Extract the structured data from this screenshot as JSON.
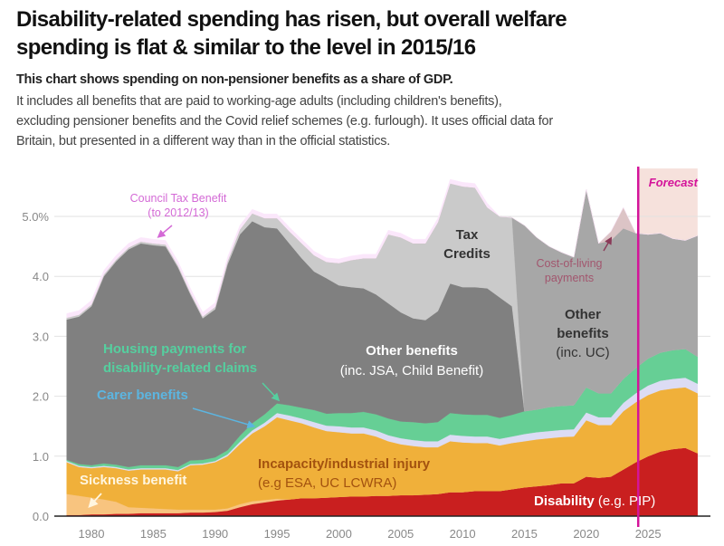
{
  "header": {
    "title_line1": "Disability-related spending has risen, but overall welfare",
    "title_line2": "spending is flat & similar to the level in 2015/16",
    "subtitle": "This chart shows spending on non-pensioner benefits as a share of GDP.",
    "description_line1": "It includes all benefits that are paid to working-age adults (including children's benefits),",
    "description_line2": "excluding pensioner benefits and the Covid relief schemes (e.g. furlough). It uses official data for",
    "description_line3": "Britain, but presented in a different way than in the official statistics."
  },
  "chart_data": {
    "type": "area",
    "stacked": true,
    "ylim": [
      0,
      5.8
    ],
    "yticks": [
      "0.0",
      "1.0",
      "2.0",
      "3.0",
      "4.0",
      "5.0%"
    ],
    "ytick_values": [
      0,
      1,
      2,
      3,
      4,
      5
    ],
    "xticks": [
      "1980",
      "1985",
      "1990",
      "1995",
      "2000",
      "2005",
      "2010",
      "2015",
      "2020",
      "2025"
    ],
    "xtick_values": [
      1980,
      1985,
      1990,
      1995,
      2000,
      2005,
      2010,
      2015,
      2020,
      2025
    ],
    "grid": true,
    "forecast_start": 2024.2,
    "forecast_label": "Forecast",
    "forecast_color": "#d4149a",
    "forecast_shade": "#f6e1dc",
    "x": [
      1978,
      1979,
      1980,
      1981,
      1982,
      1983,
      1984,
      1985,
      1986,
      1987,
      1988,
      1989,
      1990,
      1991,
      1992,
      1993,
      1994,
      1995,
      1996,
      1997,
      1998,
      1999,
      2000,
      2001,
      2002,
      2003,
      2004,
      2005,
      2006,
      2007,
      2008,
      2009,
      2010,
      2011,
      2012,
      2013,
      2014,
      2015,
      2016,
      2017,
      2018,
      2019,
      2020,
      2021,
      2022,
      2023,
      2024,
      2025,
      2026,
      2027,
      2028,
      2029
    ],
    "series": [
      {
        "key": "disability",
        "color": "#c91f1f",
        "values": [
          0.02,
          0.02,
          0.03,
          0.03,
          0.04,
          0.04,
          0.05,
          0.05,
          0.05,
          0.05,
          0.06,
          0.06,
          0.07,
          0.09,
          0.15,
          0.2,
          0.23,
          0.26,
          0.28,
          0.3,
          0.3,
          0.31,
          0.32,
          0.33,
          0.33,
          0.34,
          0.34,
          0.35,
          0.35,
          0.36,
          0.37,
          0.4,
          0.4,
          0.42,
          0.42,
          0.42,
          0.45,
          0.48,
          0.5,
          0.52,
          0.55,
          0.55,
          0.66,
          0.64,
          0.66,
          0.78,
          0.9,
          1.0,
          1.08,
          1.12,
          1.14,
          1.05
        ]
      },
      {
        "key": "sickness",
        "color": "#f8c47f",
        "values": [
          0.35,
          0.32,
          0.28,
          0.25,
          0.2,
          0.11,
          0.09,
          0.08,
          0.07,
          0.06,
          0.05,
          0.05,
          0.04,
          0.04,
          0.05,
          0.05,
          0.04,
          0.03,
          0,
          0,
          0,
          0,
          0,
          0,
          0,
          0,
          0,
          0,
          0,
          0,
          0,
          0,
          0,
          0,
          0,
          0,
          0,
          0,
          0,
          0,
          0,
          0,
          0,
          0,
          0,
          0,
          0,
          0,
          0,
          0,
          0,
          0
        ]
      },
      {
        "key": "incapacity",
        "color": "#f0b03a",
        "values": [
          0.53,
          0.48,
          0.49,
          0.54,
          0.56,
          0.61,
          0.64,
          0.65,
          0.66,
          0.64,
          0.74,
          0.75,
          0.79,
          0.87,
          1.0,
          1.13,
          1.23,
          1.36,
          1.32,
          1.25,
          1.18,
          1.11,
          1.08,
          1.05,
          1.05,
          0.99,
          0.91,
          0.85,
          0.82,
          0.79,
          0.78,
          0.85,
          0.83,
          0.8,
          0.8,
          0.76,
          0.77,
          0.77,
          0.78,
          0.78,
          0.77,
          0.78,
          0.94,
          0.88,
          0.86,
          0.97,
          1.0,
          1.02,
          1.02,
          1.01,
          1.01,
          1.0
        ]
      },
      {
        "key": "carer",
        "color": "#dcdcf4",
        "values": [
          0.02,
          0.02,
          0.02,
          0.02,
          0.02,
          0.02,
          0.02,
          0.02,
          0.02,
          0.02,
          0.02,
          0.02,
          0.02,
          0.03,
          0.04,
          0.05,
          0.06,
          0.07,
          0.08,
          0.08,
          0.09,
          0.09,
          0.1,
          0.1,
          0.1,
          0.1,
          0.1,
          0.1,
          0.1,
          0.1,
          0.1,
          0.11,
          0.11,
          0.11,
          0.11,
          0.11,
          0.11,
          0.12,
          0.12,
          0.12,
          0.12,
          0.12,
          0.13,
          0.13,
          0.13,
          0.14,
          0.15,
          0.16,
          0.16,
          0.16,
          0.16,
          0.16
        ]
      },
      {
        "key": "housing_disability",
        "color": "#66cf95",
        "values": [
          0.02,
          0.03,
          0.03,
          0.04,
          0.04,
          0.04,
          0.05,
          0.05,
          0.05,
          0.05,
          0.06,
          0.06,
          0.06,
          0.07,
          0.1,
          0.12,
          0.14,
          0.16,
          0.17,
          0.18,
          0.2,
          0.2,
          0.22,
          0.24,
          0.26,
          0.27,
          0.28,
          0.28,
          0.3,
          0.3,
          0.32,
          0.36,
          0.36,
          0.36,
          0.36,
          0.35,
          0.36,
          0.38,
          0.38,
          0.4,
          0.4,
          0.4,
          0.42,
          0.4,
          0.4,
          0.4,
          0.42,
          0.45,
          0.47,
          0.48,
          0.48,
          0.45
        ]
      },
      {
        "key": "other_legacy",
        "color": "#808080",
        "values": [
          2.34,
          2.46,
          2.65,
          3.12,
          3.39,
          3.63,
          3.7,
          3.67,
          3.65,
          3.33,
          2.77,
          2.36,
          2.47,
          3.1,
          3.36,
          3.37,
          3.12,
          2.92,
          2.7,
          2.49,
          2.31,
          2.26,
          2.13,
          2.1,
          2.06,
          2.0,
          1.92,
          1.82,
          1.73,
          1.72,
          1.85,
          2.16,
          2.12,
          2.13,
          2.11,
          2.01,
          1.81,
          0,
          0,
          0,
          0,
          0,
          0,
          0,
          0,
          0,
          0,
          0,
          0,
          0,
          0,
          0
        ]
      },
      {
        "key": "tax_credits",
        "color": "#cacaca",
        "values": [
          0.03,
          0.03,
          0.03,
          0.03,
          0.03,
          0.03,
          0.03,
          0.03,
          0.03,
          0.03,
          0.03,
          0.03,
          0.04,
          0.05,
          0.08,
          0.13,
          0.15,
          0.17,
          0.2,
          0.25,
          0.27,
          0.27,
          0.37,
          0.45,
          0.5,
          0.6,
          1.15,
          1.25,
          1.25,
          1.28,
          1.48,
          1.67,
          1.68,
          1.66,
          1.35,
          1.35,
          1.48,
          0,
          0,
          0,
          0,
          0,
          0,
          0,
          0,
          0,
          0,
          0,
          0,
          0,
          0,
          0
        ]
      },
      {
        "key": "other_uc",
        "color": "#a7a7a7",
        "values": [
          0,
          0,
          0,
          0,
          0,
          0,
          0,
          0,
          0,
          0,
          0,
          0,
          0,
          0,
          0,
          0,
          0,
          0,
          0,
          0,
          0,
          0,
          0,
          0,
          0,
          0,
          0,
          0,
          0,
          0,
          0,
          0,
          0,
          0,
          0,
          0,
          0,
          3.1,
          2.87,
          2.68,
          2.56,
          2.47,
          3.3,
          2.5,
          2.55,
          2.51,
          2.25,
          2.07,
          1.99,
          1.86,
          1.81,
          2.02
        ]
      },
      {
        "key": "cost_of_living",
        "color": "#dcc4c6",
        "values": [
          0,
          0,
          0,
          0,
          0,
          0,
          0,
          0,
          0,
          0,
          0,
          0,
          0,
          0,
          0,
          0,
          0,
          0,
          0,
          0,
          0,
          0,
          0,
          0,
          0,
          0,
          0,
          0,
          0,
          0,
          0,
          0,
          0,
          0,
          0,
          0,
          0,
          0,
          0,
          0,
          0,
          0,
          0,
          0,
          0.15,
          0.35,
          0,
          0,
          0,
          0,
          0,
          0
        ]
      },
      {
        "key": "council_tax",
        "color": "#fbe7fb",
        "values": [
          0.07,
          0.07,
          0.07,
          0.07,
          0.07,
          0.07,
          0.07,
          0.07,
          0.07,
          0.07,
          0.07,
          0.07,
          0.07,
          0.07,
          0.07,
          0.07,
          0.07,
          0.07,
          0.07,
          0.07,
          0.07,
          0.07,
          0.07,
          0.07,
          0.07,
          0.07,
          0.07,
          0.07,
          0.07,
          0.07,
          0.07,
          0.07,
          0.07,
          0.07,
          0.07,
          0.0,
          0,
          0,
          0,
          0,
          0,
          0,
          0,
          0,
          0,
          0,
          0,
          0,
          0,
          0,
          0,
          0
        ]
      }
    ],
    "annotations": {
      "council_tax_1": "Council Tax Benefit",
      "council_tax_2": "(to 2012/13)",
      "housing_1": "Housing payments for",
      "housing_2": "disability-related claims",
      "carer": "Carer benefits",
      "sickness": "Sickness benefit",
      "incapacity_1": "Incapacity/industrial injury",
      "incapacity_2": "(e.g ESA, UC LCWRA)",
      "disability_bold": "Disability",
      "disability_rest": " (e.g. PIP)",
      "other_legacy_1": "Other benefits",
      "other_legacy_2": "(inc. JSA, Child Benefit)",
      "tax_credits_1": "Tax",
      "tax_credits_2": "Credits",
      "cost_of_living_1": "Cost-of-living",
      "cost_of_living_2": "payments",
      "other_uc_1": "Other",
      "other_uc_2": "benefits",
      "other_uc_3": "(inc. UC)"
    }
  }
}
